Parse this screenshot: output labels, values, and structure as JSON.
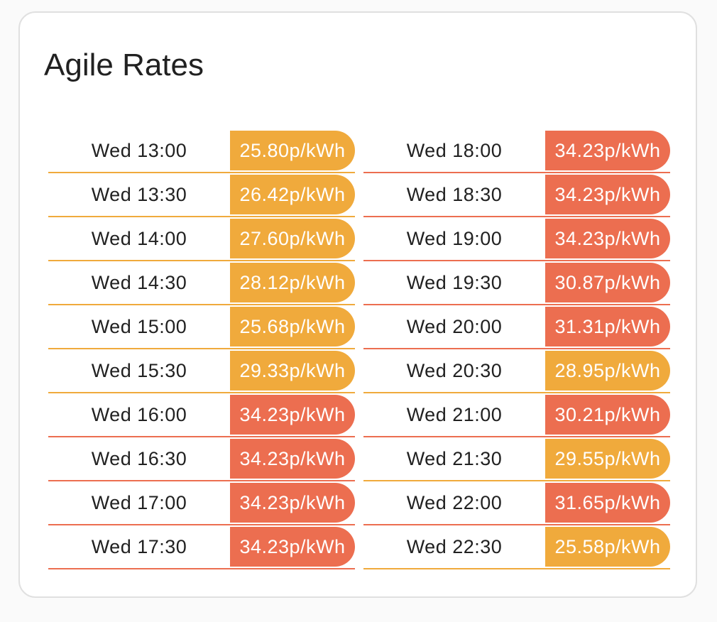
{
  "card": {
    "title": "Agile Rates"
  },
  "colors": {
    "orange": "#f0aa3c",
    "red": "#ec6e50"
  },
  "left_column": [
    {
      "time": "Wed 13:00",
      "rate": "25.80p/kWh",
      "level": "orange"
    },
    {
      "time": "Wed 13:30",
      "rate": "26.42p/kWh",
      "level": "orange"
    },
    {
      "time": "Wed 14:00",
      "rate": "27.60p/kWh",
      "level": "orange"
    },
    {
      "time": "Wed 14:30",
      "rate": "28.12p/kWh",
      "level": "orange"
    },
    {
      "time": "Wed 15:00",
      "rate": "25.68p/kWh",
      "level": "orange"
    },
    {
      "time": "Wed 15:30",
      "rate": "29.33p/kWh",
      "level": "orange"
    },
    {
      "time": "Wed 16:00",
      "rate": "34.23p/kWh",
      "level": "red"
    },
    {
      "time": "Wed 16:30",
      "rate": "34.23p/kWh",
      "level": "red"
    },
    {
      "time": "Wed 17:00",
      "rate": "34.23p/kWh",
      "level": "red"
    },
    {
      "time": "Wed 17:30",
      "rate": "34.23p/kWh",
      "level": "red"
    }
  ],
  "right_column": [
    {
      "time": "Wed 18:00",
      "rate": "34.23p/kWh",
      "level": "red"
    },
    {
      "time": "Wed 18:30",
      "rate": "34.23p/kWh",
      "level": "red"
    },
    {
      "time": "Wed 19:00",
      "rate": "34.23p/kWh",
      "level": "red"
    },
    {
      "time": "Wed 19:30",
      "rate": "30.87p/kWh",
      "level": "red"
    },
    {
      "time": "Wed 20:00",
      "rate": "31.31p/kWh",
      "level": "red"
    },
    {
      "time": "Wed 20:30",
      "rate": "28.95p/kWh",
      "level": "orange"
    },
    {
      "time": "Wed 21:00",
      "rate": "30.21p/kWh",
      "level": "red"
    },
    {
      "time": "Wed 21:30",
      "rate": "29.55p/kWh",
      "level": "orange"
    },
    {
      "time": "Wed 22:00",
      "rate": "31.65p/kWh",
      "level": "red"
    },
    {
      "time": "Wed 22:30",
      "rate": "25.58p/kWh",
      "level": "orange"
    }
  ]
}
